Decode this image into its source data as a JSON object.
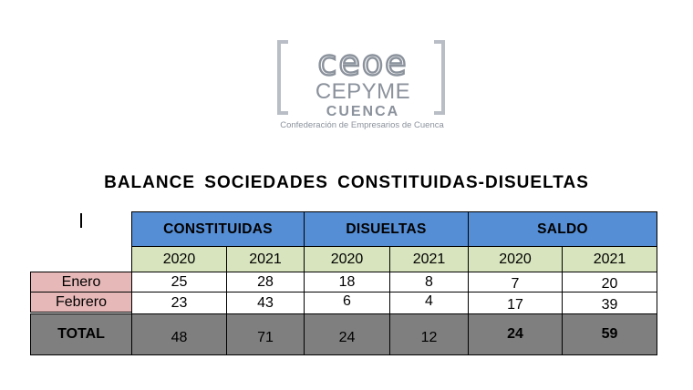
{
  "logo": {
    "name": "ceoe",
    "line2": "CEPYME",
    "line3": "CUENCA",
    "tagline": "Confederación de Empresarios de Cuenca"
  },
  "title": "BALANCE SOCIEDADES CONSTITUIDAS-DISUELTAS",
  "table": {
    "groups": [
      "CONSTITUIDAS",
      "DISUELTAS",
      "SALDO"
    ],
    "years": [
      "2020",
      "2021",
      "2020",
      "2021",
      "2020",
      "2021"
    ],
    "rows": [
      {
        "label": "Enero",
        "values": [
          "25",
          "28",
          "18",
          "8",
          "7",
          "20"
        ]
      },
      {
        "label": "Febrero",
        "values": [
          "23",
          "43",
          "6",
          "4",
          "17",
          "39"
        ]
      }
    ],
    "total": {
      "label": "TOTAL",
      "values": [
        "48",
        "71",
        "24",
        "12",
        "24",
        "59"
      ]
    }
  },
  "colors": {
    "header_blue": "#558ed5",
    "year_green": "#d7e4bd",
    "row_label_pink": "#e6b9b8",
    "total_gray": "#7f7f7f",
    "logo_gray": "#8b929c"
  }
}
